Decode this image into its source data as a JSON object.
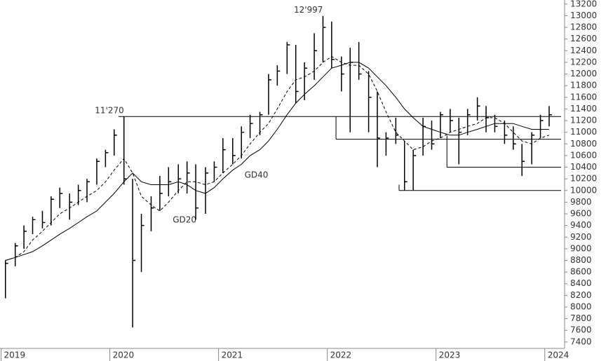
{
  "chart_data": {
    "type": "hlc",
    "xlim": [
      2018.99,
      2024.15
    ],
    "xticks": [
      {
        "value": 2019,
        "label": "2019"
      },
      {
        "value": 2020,
        "label": "2020"
      },
      {
        "value": 2021,
        "label": "2021"
      },
      {
        "value": 2022,
        "label": "2022"
      },
      {
        "value": 2023,
        "label": "2023"
      },
      {
        "value": 2024,
        "label": "2024"
      }
    ],
    "ylim": [
      7290,
      13270
    ],
    "yticks": [
      7400,
      7600,
      7800,
      8000,
      8200,
      8400,
      8600,
      8800,
      9000,
      9200,
      9400,
      9600,
      9800,
      10000,
      10200,
      10400,
      10600,
      10800,
      11000,
      11200,
      11400,
      11600,
      11800,
      12000,
      12200,
      12400,
      12600,
      12800,
      13000,
      13200
    ],
    "color": "#000000",
    "x": [
      2019.04,
      2019.13,
      2019.21,
      2019.29,
      2019.38,
      2019.46,
      2019.54,
      2019.63,
      2019.71,
      2019.79,
      2019.88,
      2019.96,
      2020.04,
      2020.13,
      2020.21,
      2020.29,
      2020.38,
      2020.46,
      2020.54,
      2020.63,
      2020.71,
      2020.79,
      2020.88,
      2020.96,
      2021.04,
      2021.13,
      2021.21,
      2021.29,
      2021.38,
      2021.46,
      2021.54,
      2021.63,
      2021.71,
      2021.79,
      2021.88,
      2021.96,
      2022.04,
      2022.13,
      2022.21,
      2022.29,
      2022.38,
      2022.46,
      2022.54,
      2022.63,
      2022.71,
      2022.79,
      2022.88,
      2022.96,
      2023.04,
      2023.13,
      2023.21,
      2023.29,
      2023.38,
      2023.46,
      2023.54,
      2023.63,
      2023.71,
      2023.79,
      2023.88,
      2023.96,
      2024.04
    ],
    "high": [
      8800,
      9100,
      9400,
      9550,
      9650,
      9900,
      10050,
      9950,
      10100,
      10200,
      10550,
      10700,
      11050,
      11270,
      10200,
      9600,
      9900,
      10250,
      10400,
      10450,
      10500,
      10450,
      10400,
      10500,
      10900,
      10900,
      11100,
      11300,
      11350,
      12000,
      12150,
      12550,
      12500,
      12200,
      12700,
      12997,
      12900,
      12300,
      12450,
      12550,
      12050,
      11700,
      11000,
      11250,
      10850,
      10700,
      11250,
      11200,
      11350,
      11400,
      11250,
      11400,
      11600,
      11450,
      11300,
      11200,
      11100,
      10800,
      11000,
      11300,
      11450
    ],
    "low": [
      8150,
      8700,
      9000,
      9250,
      9350,
      9400,
      9700,
      9500,
      9750,
      9800,
      10100,
      10400,
      10600,
      10100,
      7650,
      8600,
      9300,
      9650,
      9900,
      9950,
      9950,
      9500,
      9600,
      10150,
      10300,
      10450,
      10550,
      10900,
      10950,
      11300,
      11800,
      12000,
      11500,
      11550,
      11900,
      12200,
      12100,
      11700,
      11000,
      11900,
      11000,
      10400,
      10600,
      10800,
      10000,
      10000,
      10600,
      10700,
      10900,
      11000,
      10450,
      10950,
      11200,
      11000,
      11000,
      10800,
      10700,
      10250,
      10450,
      10900,
      11100
    ],
    "close": [
      8750,
      9050,
      9300,
      9500,
      9450,
      9850,
      9950,
      9800,
      10000,
      10150,
      10500,
      10650,
      10950,
      10200,
      8800,
      9400,
      9700,
      9950,
      10150,
      10200,
      10300,
      9700,
      10300,
      10400,
      10700,
      10600,
      11000,
      11150,
      11300,
      11900,
      12050,
      12500,
      11700,
      12100,
      12400,
      12800,
      12250,
      12000,
      12200,
      12000,
      11600,
      10900,
      10900,
      10950,
      10150,
      10600,
      11100,
      10800,
      11300,
      11200,
      11000,
      11300,
      11450,
      11250,
      11100,
      10950,
      10800,
      10500,
      10950,
      11200,
      11300
    ],
    "series": [
      {
        "name": "GD20",
        "dash": true,
        "values": [
          8800,
          8850,
          8950,
          9150,
          9300,
          9450,
          9600,
          9700,
          9800,
          9900,
          10000,
          10150,
          10350,
          10550,
          10300,
          9900,
          9750,
          9650,
          9800,
          10000,
          10150,
          10150,
          10100,
          10150,
          10300,
          10450,
          10600,
          10800,
          11000,
          11150,
          11400,
          11700,
          11900,
          11950,
          12050,
          12200,
          12300,
          12200,
          12150,
          12150,
          12000,
          11700,
          11350,
          11000,
          10850,
          10700,
          10750,
          10850,
          10900,
          11000,
          11050,
          11100,
          11150,
          11250,
          11250,
          11150,
          11000,
          10850,
          10800,
          10900,
          10950
        ]
      },
      {
        "name": "GD40",
        "dash": false,
        "values": [
          8800,
          8850,
          8900,
          8950,
          9050,
          9150,
          9250,
          9350,
          9450,
          9550,
          9650,
          9800,
          9950,
          10150,
          10300,
          10150,
          10100,
          10100,
          10100,
          10150,
          10100,
          10000,
          9950,
          10050,
          10200,
          10350,
          10450,
          10600,
          10700,
          10850,
          11050,
          11300,
          11500,
          11650,
          11800,
          11950,
          12100,
          12150,
          12200,
          12200,
          12100,
          11950,
          11800,
          11600,
          11400,
          11250,
          11100,
          11050,
          11000,
          10950,
          10950,
          11000,
          11050,
          11100,
          11150,
          11150,
          11150,
          11100,
          11050,
          11050,
          11050
        ]
      }
    ],
    "levels": [
      {
        "value": 11270,
        "start": 2020.08
      },
      {
        "value": 10880,
        "from": 11270,
        "start": 2022.08
      },
      {
        "value": 10400,
        "from": 10950,
        "start": 2023.1
      },
      {
        "value": 10000,
        "from": 10100,
        "start": 2022.66
      }
    ],
    "annotations": [
      {
        "text": "11'270",
        "x": 2020.13,
        "y": 11270
      },
      {
        "text": "12'997",
        "x": 2021.96,
        "y": 12997
      }
    ]
  }
}
